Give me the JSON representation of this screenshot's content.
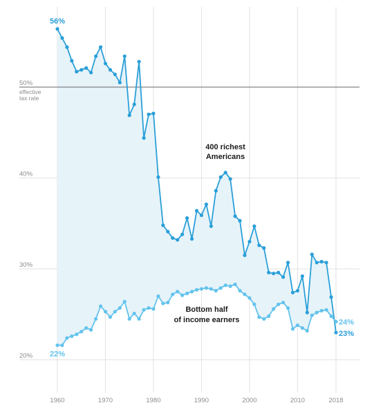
{
  "chart_data": {
    "type": "line",
    "title": "",
    "xlabel": "",
    "ylabel": "",
    "xlim": [
      1960,
      2018
    ],
    "ylim": [
      20,
      58
    ],
    "x_ticks": [
      1960,
      1970,
      1980,
      1990,
      2000,
      2010,
      2018
    ],
    "y_ticks": [
      {
        "value": 20,
        "label": "20%"
      },
      {
        "value": 30,
        "label": "30%"
      },
      {
        "value": 40,
        "label": "40%"
      },
      {
        "value": 50,
        "label": "50%"
      }
    ],
    "reference_line": {
      "value": 50,
      "note_lines": [
        "effective",
        "tax rate"
      ]
    },
    "grid": true,
    "shaded_between_series": true,
    "colors": {
      "richest": "#2a9fd8",
      "bottom": "#63c3ec",
      "fill": "#e6f3f9",
      "reference": "#666666",
      "grid": "#e2e2e2"
    },
    "series": [
      {
        "name": "400 richest Americans",
        "label_lines": [
          "400 richest",
          "Americans"
        ],
        "start_label": "56%",
        "end_label": "23%",
        "x": [
          1960,
          1961,
          1962,
          1963,
          1964,
          1965,
          1966,
          1967,
          1968,
          1969,
          1970,
          1971,
          1972,
          1973,
          1974,
          1975,
          1976,
          1977,
          1978,
          1979,
          1980,
          1981,
          1982,
          1983,
          1984,
          1985,
          1986,
          1987,
          1988,
          1989,
          1990,
          1991,
          1992,
          1993,
          1994,
          1995,
          1996,
          1997,
          1998,
          1999,
          2000,
          2001,
          2002,
          2003,
          2004,
          2005,
          2006,
          2007,
          2008,
          2009,
          2010,
          2011,
          2012,
          2013,
          2014,
          2015,
          2016,
          2017,
          2018
        ],
        "values": [
          56.4,
          55.4,
          54.4,
          52.9,
          51.7,
          51.9,
          52.1,
          51.6,
          53.4,
          54.4,
          52.6,
          51.9,
          51.4,
          50.5,
          53.4,
          46.9,
          48.1,
          52.8,
          44.4,
          47.0,
          47.1,
          40.1,
          34.8,
          34.1,
          33.4,
          33.2,
          33.8,
          35.6,
          33.3,
          36.4,
          35.9,
          37.1,
          34.7,
          38.6,
          40.1,
          40.6,
          39.9,
          35.8,
          35.3,
          31.5,
          33.0,
          34.7,
          32.6,
          32.3,
          29.6,
          29.5,
          29.6,
          29.1,
          30.7,
          27.4,
          27.6,
          29.2,
          25.2,
          31.6,
          30.7,
          30.8,
          30.7,
          26.9,
          23.0
        ]
      },
      {
        "name": "Bottom half of income earners",
        "label_lines": [
          "Bottom half",
          "of income earners"
        ],
        "start_label": "22%",
        "end_label": "24%",
        "x": [
          1960,
          1961,
          1962,
          1963,
          1964,
          1965,
          1966,
          1967,
          1968,
          1969,
          1970,
          1971,
          1972,
          1973,
          1974,
          1975,
          1976,
          1977,
          1978,
          1979,
          1980,
          1981,
          1982,
          1983,
          1984,
          1985,
          1986,
          1987,
          1988,
          1989,
          1990,
          1991,
          1992,
          1993,
          1994,
          1995,
          1996,
          1997,
          1998,
          1999,
          2000,
          2001,
          2002,
          2003,
          2004,
          2005,
          2006,
          2007,
          2008,
          2009,
          2010,
          2011,
          2012,
          2013,
          2014,
          2015,
          2016,
          2017,
          2018
        ],
        "values": [
          21.6,
          21.6,
          22.4,
          22.6,
          22.8,
          23.1,
          23.5,
          23.3,
          24.5,
          25.9,
          25.3,
          24.7,
          25.3,
          25.7,
          26.4,
          24.5,
          25.1,
          24.5,
          25.5,
          25.7,
          25.6,
          27.0,
          26.2,
          26.3,
          27.2,
          27.5,
          27.1,
          27.3,
          27.5,
          27.7,
          27.8,
          27.9,
          27.8,
          27.6,
          27.9,
          28.2,
          28.1,
          28.3,
          27.6,
          27.2,
          26.8,
          26.1,
          24.7,
          24.5,
          24.8,
          25.6,
          26.1,
          26.3,
          25.7,
          23.4,
          23.8,
          23.5,
          23.2,
          24.9,
          25.2,
          25.4,
          25.5,
          24.8,
          24.2
        ]
      }
    ]
  }
}
